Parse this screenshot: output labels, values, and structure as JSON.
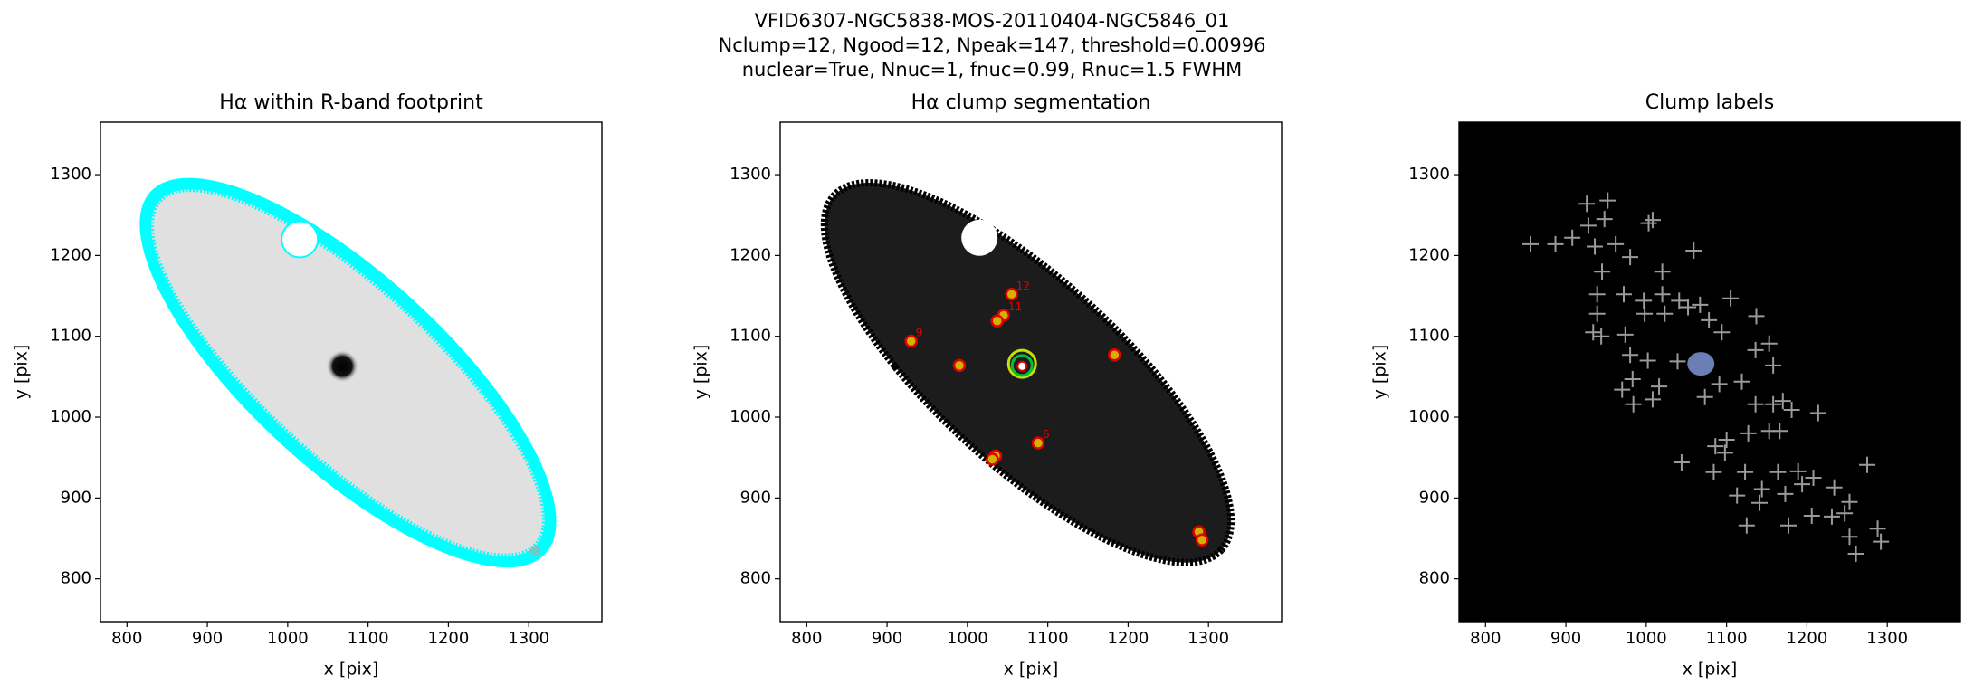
{
  "title_lines": [
    "VFID6307-NGC5838-MOS-20110404-NGC5846_01",
    "Nclump=12, Ngood=12, Npeak=147, threshold=0.00996",
    "nuclear=True, Nnuc=1, fnuc=0.99, Rnuc=1.5 FWHM"
  ],
  "chart_data": [
    {
      "type": "image",
      "title": "Hα within R-band footprint",
      "xlabel": "x [pix]",
      "ylabel": "y [pix]",
      "xlim": [
        767,
        1391
      ],
      "ylim": [
        747,
        1365
      ],
      "xticks": [
        800,
        900,
        1000,
        1100,
        1200,
        1300
      ],
      "yticks": [
        800,
        900,
        1000,
        1100,
        1200,
        1300
      ]
    },
    {
      "type": "segmentation",
      "title": "Hα clump segmentation",
      "xlabel": "x [pix]",
      "ylabel": "y [pix]",
      "xlim": [
        767,
        1391
      ],
      "ylim": [
        747,
        1365
      ],
      "xticks": [
        800,
        900,
        1000,
        1100,
        1200,
        1300
      ],
      "yticks": [
        800,
        900,
        1000,
        1100,
        1200,
        1300
      ],
      "clumps": {
        "x": [
          1055,
          1045,
          1037,
          930,
          990,
          1183,
          1035,
          1031,
          1088,
          1288,
          1292
        ],
        "y": [
          1152,
          1126,
          1119,
          1094,
          1064,
          1077,
          952,
          948,
          968,
          858,
          848
        ],
        "labels": [
          "12",
          "11",
          null,
          "9",
          null,
          null,
          null,
          null,
          "6",
          null,
          null
        ]
      }
    },
    {
      "type": "scatter",
      "title": "Clump labels",
      "xlabel": "x [pix]",
      "ylabel": "y [pix]",
      "xlim": [
        767,
        1391
      ],
      "ylim": [
        747,
        1365
      ],
      "xticks": [
        800,
        900,
        1000,
        1100,
        1200,
        1300
      ],
      "yticks": [
        800,
        900,
        1000,
        1100,
        1200,
        1300
      ],
      "color": "#9a9a9a",
      "x": [
        856,
        887,
        926,
        952,
        948,
        928,
        908,
        936,
        962,
        1003,
        1008,
        1059,
        980,
        945,
        939,
        939,
        934,
        944,
        972,
        997,
        998,
        1020,
        1020,
        1023,
        1041,
        1052,
        1067,
        1078,
        1105,
        1094,
        1137,
        1136,
        1119,
        1153,
        1158,
        974,
        980,
        1002,
        970,
        984,
        1008,
        1016,
        983,
        1039,
        1073,
        1091,
        1136,
        1158,
        1170,
        1181,
        1214,
        1153,
        1166,
        1127,
        1100,
        1098,
        1086,
        1044,
        1084,
        1123,
        1144,
        1113,
        1164,
        1189,
        1194,
        1173,
        1141,
        1208,
        1206,
        1177,
        1234,
        1231,
        1247,
        1253,
        1275,
        1288,
        1292,
        1261,
        1253,
        1125
      ],
      "y": [
        1214,
        1214,
        1264,
        1268,
        1245,
        1237,
        1222,
        1211,
        1214,
        1240,
        1244,
        1206,
        1198,
        1180,
        1152,
        1128,
        1105,
        1100,
        1152,
        1144,
        1128,
        1180,
        1152,
        1128,
        1144,
        1136,
        1139,
        1120,
        1147,
        1105,
        1125,
        1083,
        1044,
        1091,
        1064,
        1102,
        1077,
        1070,
        1034,
        1016,
        1022,
        1038,
        1047,
        1069,
        1025,
        1041,
        1016,
        1016,
        1020,
        1009,
        1005,
        983,
        983,
        980,
        972,
        956,
        964,
        944,
        932,
        932,
        911,
        903,
        932,
        933,
        917,
        905,
        894,
        925,
        878,
        866,
        913,
        877,
        881,
        895,
        941,
        862,
        846,
        831,
        852,
        866
      ]
    }
  ]
}
